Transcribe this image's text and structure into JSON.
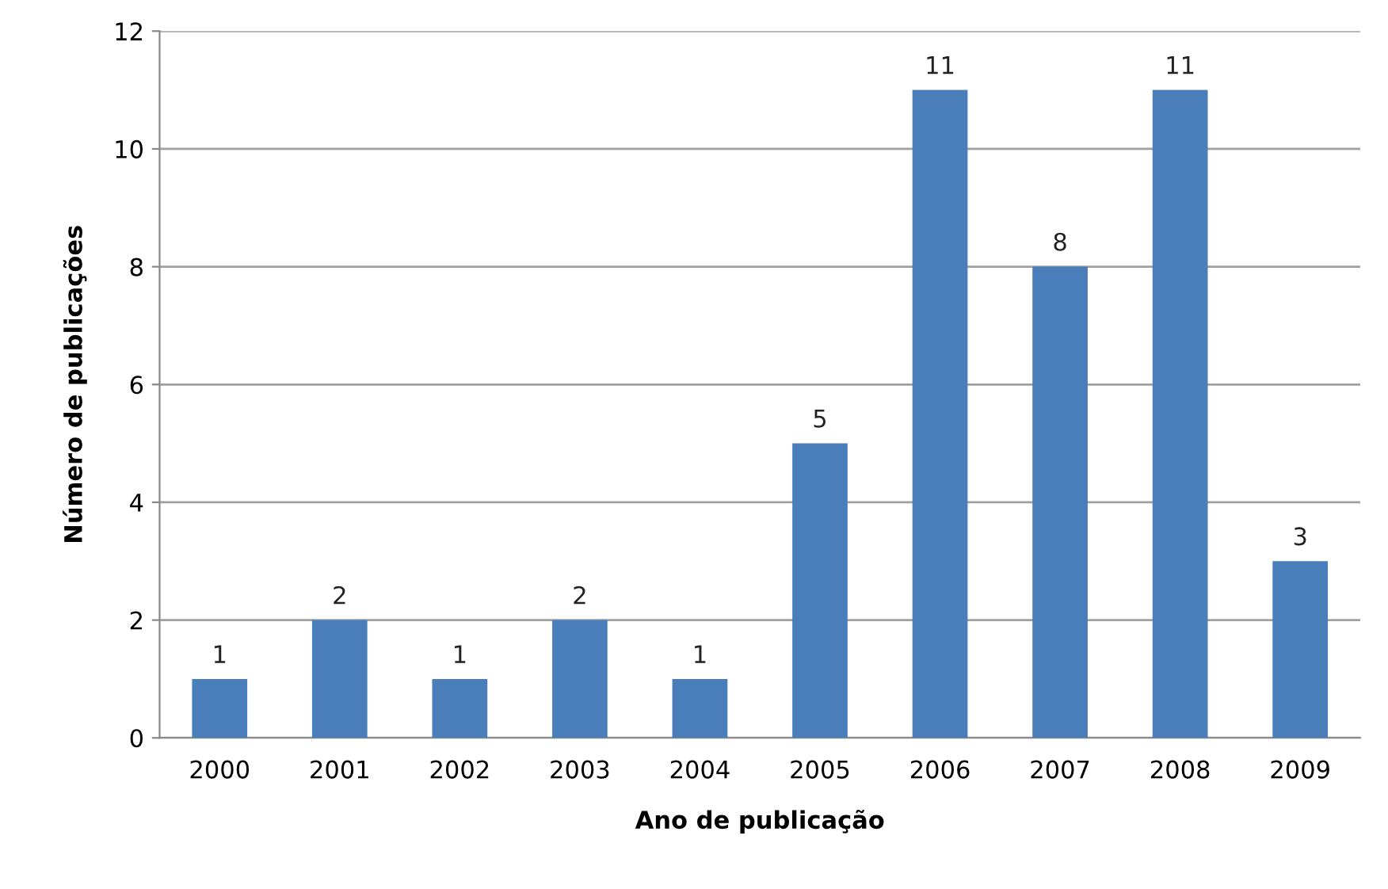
{
  "chart_data": {
    "type": "bar",
    "xlabel": "Ano de publicação",
    "ylabel": "Número de publicações",
    "categories": [
      "2000",
      "2001",
      "2002",
      "2003",
      "2004",
      "2005",
      "2006",
      "2007",
      "2008",
      "2009"
    ],
    "values": [
      1,
      2,
      1,
      2,
      1,
      5,
      11,
      8,
      11,
      3
    ],
    "color": "#4a7ebb",
    "ylim": [
      0,
      12
    ],
    "yticks": [
      0,
      2,
      4,
      6,
      8,
      10,
      12
    ],
    "grid": "y",
    "data_labels": true
  }
}
